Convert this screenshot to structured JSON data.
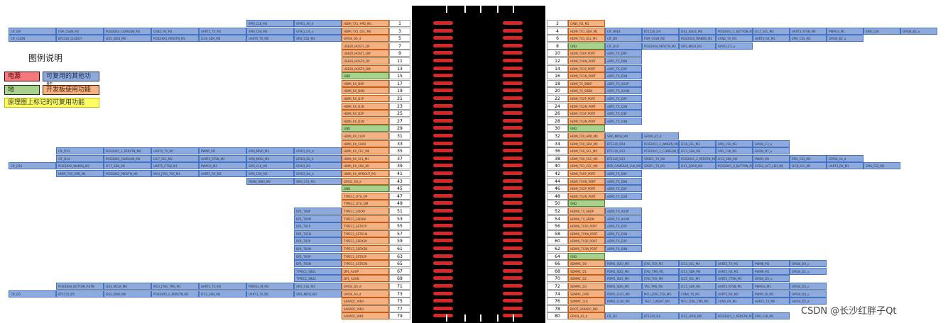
{
  "legend": {
    "title": "图例说明",
    "power": "电源",
    "ground": "地",
    "other_func": "可复用的其他功能",
    "dev_func": "开发板使用功能",
    "schematic_func": "原理图上标记的可复用功能",
    "colors": {
      "power": "#f4787c",
      "ground": "#a9d18e",
      "other": "#8ea9db",
      "dev": "#f4b183",
      "schematic": "#ffff66"
    }
  },
  "watermark": "CSDN @长沙红胖子Qt",
  "left_rows": [
    {
      "pin": 1,
      "sig": "HDMI_TX1_HPD_M0",
      "color": "orange",
      "alts": [
        "SPI0_CLK_M3",
        "GPIO1_A6_d"
      ]
    },
    {
      "pin": 3,
      "sig": "HDMI_TX1_CEC_M0",
      "color": "orange",
      "alts": [
        "CIF_D9",
        "FSPI_CS0N_M2",
        "PCIE30X4_CLKREQN_M2",
        "CAN2_RX_M1",
        "UART5_TX_M1",
        "SPI0_CS0_M3",
        "GPIO1_C4_u"
      ]
    },
    {
      "pin": 5,
      "sig": "GPIO4_B0_d",
      "color": "orange",
      "alts": [
        "CIF_CLKIN",
        "BT1120_CLKOUT",
        "I2S1_SDI3_M0",
        "PCIE30X1_PERSTN_M1",
        "I2C6_SDA_M3",
        "UART5_TX_M0",
        "SPI2_CS2_M3"
      ]
    },
    {
      "pin": 7,
      "sig": "USB20_HOST1_DP",
      "color": "orange",
      "alts": []
    },
    {
      "pin": 9,
      "sig": "USB20_HOST1_DM",
      "color": "orange",
      "alts": []
    },
    {
      "pin": 11,
      "sig": "USB20_HOST0_DP",
      "color": "orange",
      "alts": []
    },
    {
      "pin": 13,
      "sig": "USB20_HOST0_DM",
      "color": "orange",
      "alts": []
    },
    {
      "pin": 15,
      "sig": "GND",
      "color": "green",
      "alts": []
    },
    {
      "pin": 17,
      "sig": "HDMI_RX_D0P",
      "color": "orange",
      "alts": []
    },
    {
      "pin": 19,
      "sig": "HDMI_RX_D0N",
      "color": "orange",
      "alts": []
    },
    {
      "pin": 21,
      "sig": "HDMI_RX_D1P",
      "color": "orange",
      "alts": []
    },
    {
      "pin": 23,
      "sig": "HDMI_RX_D1N",
      "color": "orange",
      "alts": []
    },
    {
      "pin": 25,
      "sig": "HDMI_RX_D2P",
      "color": "orange",
      "alts": []
    },
    {
      "pin": 27,
      "sig": "HDMI_RX_D2N",
      "color": "orange",
      "alts": []
    },
    {
      "pin": 29,
      "sig": "GND",
      "color": "green",
      "alts": []
    },
    {
      "pin": 31,
      "sig": "HDMI_RX_CLKP",
      "color": "orange",
      "alts": []
    },
    {
      "pin": 33,
      "sig": "HDMI_RX_CLKN",
      "color": "orange",
      "alts": []
    },
    {
      "pin": 35,
      "sig": "HDMI_RX_CEC_M0",
      "color": "orange",
      "alts": [
        "CIF_D13",
        "PCIE20X1_2_PERSTN_M0",
        "UART4_TX_M1",
        "PWM5_M2",
        "SPI0_MISO_M3",
        "GPIO1_D4_d"
      ]
    },
    {
      "pin": 37,
      "sig": "HDMI_RX_SCL_M1",
      "color": "orange",
      "alts": [
        "CIF_D14",
        "PCIE30X2_CLKREQN_M2",
        "I2C7_SCL_M2",
        "UART5_RTSN_M2",
        "SPI0_MOSI_M3",
        "GPIO3_B2_d"
      ]
    },
    {
      "pin": 39,
      "sig": "HDMI_RX_SDA_M1",
      "color": "orange",
      "alts": [
        "CIF_D15",
        "PCIE30X2_WAKEN_M2",
        "I2C7_SDA_M1",
        "UART5_CTSN_M1",
        "PWM13_M2",
        "SPI0_CLK_M3",
        "GPIO3_D3"
      ]
    },
    {
      "pin": 41,
      "sig": "HDMI_RX_HPDOUT_M1",
      "color": "orange",
      "alts": [
        "HDMI_TX0_HPD_M1",
        "PCIE30X2_PERSTN_M2",
        "MCU_JTAG_TCK_M1",
        "UART5_RX_M2",
        "SPI0_CS0_M3",
        "GPIO3_D0_d"
      ]
    },
    {
      "pin": 43,
      "sig": "GPIO1_D0_d",
      "color": "orange",
      "alts": [
        "PDM0_SDI0_M0",
        "SPI0_CS1_M3"
      ]
    },
    {
      "pin": 45,
      "sig": "GND",
      "color": "green",
      "alts": []
    },
    {
      "pin": 47,
      "sig": "TYPEC1_OTG_DP",
      "color": "orange",
      "alts": []
    },
    {
      "pin": 49,
      "sig": "TYPEC1_OTG_DM",
      "color": "orange",
      "alts": []
    },
    {
      "pin": 51,
      "sig": "TYPEC1_SSRXP",
      "color": "orange",
      "alts": [
        "DP1_TX0P"
      ]
    },
    {
      "pin": 53,
      "sig": "TYPEC1_SSRXN",
      "color": "orange",
      "alts": [
        "DP1_TX0N"
      ]
    },
    {
      "pin": 55,
      "sig": "TYPEC1_SSTX1P",
      "color": "orange",
      "alts": [
        "DP1_TX1P"
      ]
    },
    {
      "pin": 57,
      "sig": "TYPEC1_SSTX1N",
      "color": "orange",
      "alts": [
        "DP1_TX1N"
      ]
    },
    {
      "pin": 59,
      "sig": "TYPEC1_SSRX2P",
      "color": "orange",
      "alts": [
        "DP1_TX2P"
      ]
    },
    {
      "pin": 61,
      "sig": "TYPEC1_SSRX2N",
      "color": "orange",
      "alts": [
        "DP1_TX2N"
      ]
    },
    {
      "pin": 63,
      "sig": "TYPEC1_SSTX2P",
      "color": "orange",
      "alts": [
        "DP1_TX3P"
      ]
    },
    {
      "pin": 65,
      "sig": "TYPEC1_SSTX2N",
      "color": "orange",
      "alts": [
        "DP1_TX3N"
      ]
    },
    {
      "pin": 67,
      "sig": "DP1_AUXP",
      "color": "orange",
      "alts": [
        "TYPEC1_SBU1"
      ]
    },
    {
      "pin": 69,
      "sig": "DP1_AUXN",
      "color": "orange",
      "alts": [
        "TYPEC1_SBU2"
      ]
    },
    {
      "pin": 71,
      "sig": "GPIO3_D5_d",
      "color": "orange",
      "alts": [
        "PCIE30X4_BUTTON_RSTN",
        "I2S1_MCLK_M0",
        "MCU_JTAG_TMS_M1",
        "UART5_TX_M2",
        "PWM12_M_M3",
        "SPI2_CS2_M3"
      ]
    },
    {
      "pin": 73,
      "sig": "GPIO4_A0_d",
      "color": "orange",
      "alts": [
        "CIF_D5",
        "BT1120_D5",
        "I2S2_SDI0_M0",
        "PCIE30X1_0_PERSTN_M1",
        "I2C3_SDA_M2",
        "UART3_TX_M1",
        "SPI2_MOSI_M3"
      ]
    },
    {
      "pin": 75,
      "sig": "SARADC_VIN4",
      "color": "orange",
      "alts": []
    },
    {
      "pin": 77,
      "sig": "SARADC_VIN3",
      "color": "orange",
      "alts": []
    },
    {
      "pin": 79,
      "sig": "SARADC_VIN1",
      "color": "orange",
      "alts": []
    }
  ],
  "right_rows": [
    {
      "pin": 2,
      "sig": "CAN1_RX_M1",
      "color": "orange",
      "alts": []
    },
    {
      "pin": 4,
      "sig": "HDMI_TX1_SDA_M1",
      "color": "orange",
      "alts": [
        "CIF_HREF",
        "BT1120_D4",
        "I2S1_SDO1_M0",
        "PCIE30X1_1_BUTTON_RSTN",
        "I2C7_SCL_M3",
        "UART3_RTSN_M0",
        "PWM14_M1",
        "SPI0_CS0",
        "GPIO4_B2_u"
      ]
    },
    {
      "pin": 6,
      "sig": "HDMI_TX1_SCL_M1",
      "color": "orange",
      "alts": [
        "CIF_D9",
        "FSPI_CS1N_M2",
        "PCIE30X4_WAKEN_M2",
        "CAN2_TX_M1",
        "UART5_RX_M1",
        "SPI0_CS1_M3",
        "GPIO4_B2_u"
      ]
    },
    {
      "pin": 8,
      "sig": "GND",
      "color": "green",
      "alts": [
        "CIF_D10",
        "PCIE30X4_PERSTN_M2",
        "SPI3_MISO_M3",
        "GPIO3_C1_u"
      ]
    },
    {
      "pin": 10,
      "sig": "HDMI_TX0P_PORT",
      "color": "orange",
      "alts": [
        "eDP1_TX_D0P"
      ]
    },
    {
      "pin": 12,
      "sig": "HDMI_TX0N_PORT",
      "color": "orange",
      "alts": [
        "eDP1_TX_D0N"
      ]
    },
    {
      "pin": 14,
      "sig": "HDMI_TX1P_PORT",
      "color": "orange",
      "alts": [
        "eDP1_TX_D1P"
      ]
    },
    {
      "pin": 16,
      "sig": "HDMI_TX1N_PORT",
      "color": "orange",
      "alts": [
        "eDP1_TX_D1N"
      ]
    },
    {
      "pin": 18,
      "sig": "HDMI_TX_SBDP",
      "color": "orange",
      "alts": [
        "eDP1_TX_AUXP"
      ]
    },
    {
      "pin": 20,
      "sig": "HDMI_TX_SBDN",
      "color": "orange",
      "alts": [
        "eDP1_TX_AUXN"
      ]
    },
    {
      "pin": 22,
      "sig": "HDMI_TX2P_PORT",
      "color": "orange",
      "alts": [
        "eDP1_TX_D2P"
      ]
    },
    {
      "pin": 24,
      "sig": "HDMI_TX2N_PORT",
      "color": "orange",
      "alts": [
        "eDP1_TX_D2N"
      ]
    },
    {
      "pin": 26,
      "sig": "HDMI_TX3P_PORT",
      "color": "orange",
      "alts": [
        "eDP1_TX_D3P"
      ]
    },
    {
      "pin": 28,
      "sig": "HDMI_TX3N_PORT",
      "color": "orange",
      "alts": [
        "eDP1_TX_D3N"
      ]
    },
    {
      "pin": 30,
      "sig": "GND",
      "color": "green",
      "alts": []
    },
    {
      "pin": 32,
      "sig": "HDMI_TX0_HPD_M0",
      "color": "orange",
      "alts": [
        "SPI0_MOSI_M0",
        "GPIO0_A1_d"
      ]
    },
    {
      "pin": 34,
      "sig": "HDMI_TX0_SDA_M0",
      "color": "orange",
      "alts": [
        "BT1120_D14",
        "PCIE20X1_2_WAKEN_M0",
        "I2C8_SCL_M3",
        "SPI0_CS0_M3",
        "GPIO4_C3_u"
      ]
    },
    {
      "pin": 36,
      "sig": "HDMI_TX0_SCL_M0",
      "color": "orange",
      "alts": [
        "BT1120_D13",
        "PCIE20X1_2_CLKREQN_M0",
        "I2C3_SDA_M3",
        "SPI2_CLK_M3",
        "GPIO4_B7_u"
      ]
    },
    {
      "pin": 38,
      "sig": "HDMI_TX0_CEC_M0",
      "color": "orange",
      "alts": [
        "BT1120_D11",
        "SPDIF1_TX_M2",
        "PCIE20X1_2_PERSTN_M0",
        "I2C3_SDA_M3",
        "PWM1_M1",
        "SPI2_CS1_M3",
        "GPIO4_C4_d"
      ]
    },
    {
      "pin": 40,
      "sig": "HDMI_TX1_CEC_M0",
      "color": "orange",
      "alts": [
        "MIPI_CAMERA4_CLK_M0",
        "SPDIF1_TX_M1",
        "I2S1_SDO0_M0",
        "PCIE30X1_0_BUTTON_RSTN",
        "SATA2_ACT_LED_M1",
        "I2C8_SCL_M1",
        "UART3_RX_M1",
        "SPI0_CS2_M1"
      ]
    },
    {
      "pin": 42,
      "sig": "HDMI_TX0P_PORT",
      "color": "orange",
      "alts": [
        "eDP0_TX_D0P"
      ]
    },
    {
      "pin": 44,
      "sig": "HDMI_TX0N_PORT",
      "color": "orange",
      "alts": [
        "eDP0_TX_D0N"
      ]
    },
    {
      "pin": 46,
      "sig": "HDMI_TX2P_PORT",
      "color": "orange",
      "alts": [
        "eDP0_TX_D2P"
      ]
    },
    {
      "pin": 48,
      "sig": "HDMI_TX2N_PORT",
      "color": "orange",
      "alts": [
        "eDP0_TX_D2N"
      ]
    },
    {
      "pin": 50,
      "sig": "GND",
      "color": "green",
      "alts": []
    },
    {
      "pin": 52,
      "sig": "HDMI0_TX_SBDP",
      "color": "orange",
      "alts": [
        "eDP0_TX_AUXP"
      ]
    },
    {
      "pin": 54,
      "sig": "HDMI0_TX_SBDN",
      "color": "orange",
      "alts": [
        "eDP0_TX_AUXN"
      ]
    },
    {
      "pin": 56,
      "sig": "HDMI0_TX1P_PORT",
      "color": "orange",
      "alts": [
        "eDP0_TX_D1P"
      ]
    },
    {
      "pin": 58,
      "sig": "HDMI0_TX1N_PORT",
      "color": "orange",
      "alts": [
        "eDP0_TX_D1N"
      ]
    },
    {
      "pin": 60,
      "sig": "HDMI0_TX3P_PORT",
      "color": "orange",
      "alts": [
        "eDP0_TX_D3P"
      ]
    },
    {
      "pin": 62,
      "sig": "HDMI0_TX3N_PORT",
      "color": "orange",
      "alts": [
        "eDP0_TX_D3N"
      ]
    },
    {
      "pin": 64,
      "sig": "GND",
      "color": "green",
      "alts": []
    },
    {
      "pin": 66,
      "sig": "SDMMC_D0",
      "color": "orange",
      "alts": [
        "PDM1_SDI3_M0",
        "JTAG_TCK_M1",
        "I2C3_SCL_M4",
        "UART2_TX_M1",
        "PWM8_M1",
        "GPIO4_D0_u"
      ]
    },
    {
      "pin": 68,
      "sig": "SDMMC_D1",
      "color": "orange",
      "alts": [
        "PDM1_SDI2_M0",
        "JTAG_TMS_M1",
        "I2C3_SDA_M4",
        "UART2_RX_M1",
        "PWM9_M1",
        "GPIO4_D1_u"
      ]
    },
    {
      "pin": 70,
      "sig": "SDMMC_D2",
      "color": "orange",
      "alts": [
        "PDM1_SDI1_M0",
        "JTAG_TCK_M0",
        "I2C5_SCL_M1",
        "UART5_CTSN_M1",
        "GPIO4_D2_u"
      ]
    },
    {
      "pin": 72,
      "sig": "SDMMC_D3",
      "color": "orange",
      "alts": [
        "PDM1_SDI0_M0",
        "TAG_TMS_M0",
        "I2C5_SDA_M1",
        "UART5_RTSN_M1",
        "PWM10_M1",
        "GPIO4_D3_u"
      ]
    },
    {
      "pin": 74,
      "sig": "SDMMC_CMD",
      "color": "orange",
      "alts": [
        "PDM1_CLK1_M0",
        "MCU_JTAG_TCK_M0",
        "CAN0_TX_M1",
        "UART5_RX_M0",
        "PWM7_IR_M1",
        "GPIO4_D4_u"
      ]
    },
    {
      "pin": 76,
      "sig": "SDMMC_CLK",
      "color": "orange",
      "alts": [
        "PDM1_CLK0_M0",
        "TEST_CLKOUT_M0",
        "MCU_JTAG_TMS_M0",
        "CAN0_RX_M1",
        "UART5_TX_M0",
        "GPIO4_D5_d"
      ]
    },
    {
      "pin": 78,
      "sig": "BOOT_SARADC_IN0",
      "color": "orange",
      "alts": []
    },
    {
      "pin": 80,
      "sig": "GPIO4_A2_d",
      "color": "orange",
      "alts": [
        "CIF_D2",
        "BT1120_D2",
        "I2S1_LRCK_M0",
        "PCIE30X1_1_PERSTN_M1",
        "SPI0_CLK_M3"
      ]
    }
  ]
}
